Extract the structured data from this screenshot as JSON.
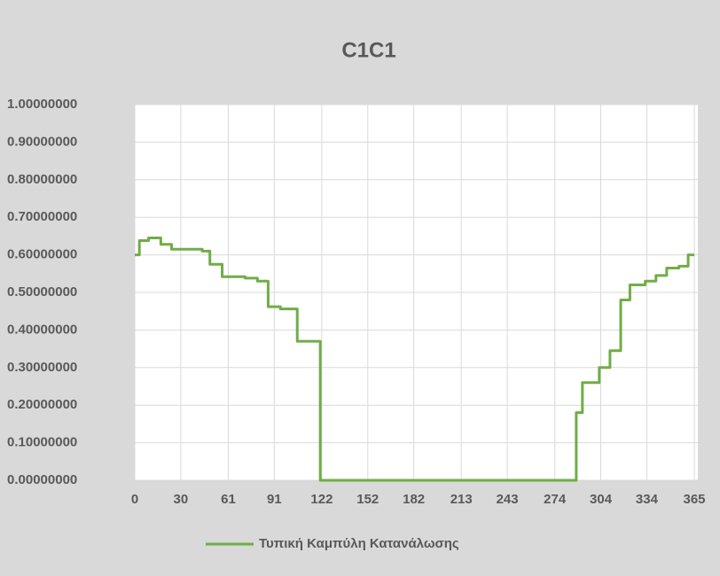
{
  "chart_data": {
    "type": "line",
    "title": "C1C1",
    "x": [
      0,
      3,
      3,
      9,
      9,
      17,
      17,
      24,
      24,
      44,
      44,
      49,
      49,
      57,
      57,
      72,
      72,
      80,
      80,
      87,
      87,
      95,
      95,
      106,
      106,
      121,
      121,
      288,
      288,
      292,
      292,
      303,
      303,
      310,
      310,
      317,
      317,
      323,
      323,
      333,
      333,
      340,
      340,
      347,
      347,
      355,
      355,
      361,
      361,
      365
    ],
    "series": [
      {
        "name": "Τυπική Καμπύλη Κατανάλωσης",
        "color": "#70ad47",
        "values": [
          0.6,
          0.6,
          0.638,
          0.638,
          0.645,
          0.645,
          0.628,
          0.628,
          0.615,
          0.615,
          0.61,
          0.61,
          0.575,
          0.575,
          0.542,
          0.542,
          0.538,
          0.538,
          0.53,
          0.53,
          0.462,
          0.462,
          0.456,
          0.456,
          0.37,
          0.37,
          0,
          0,
          0.18,
          0.18,
          0.26,
          0.26,
          0.3,
          0.3,
          0.345,
          0.345,
          0.48,
          0.48,
          0.52,
          0.52,
          0.53,
          0.53,
          0.545,
          0.545,
          0.565,
          0.565,
          0.57,
          0.57,
          0.6,
          0.6
        ]
      }
    ],
    "xlim": [
      0,
      365
    ],
    "xticks": [
      0,
      30,
      61,
      91,
      122,
      152,
      182,
      213,
      243,
      274,
      304,
      334,
      365
    ],
    "ylim": [
      0,
      1
    ],
    "yticks": [
      {
        "value": 0,
        "label": "0.00000000"
      },
      {
        "value": 0.1,
        "label": "0.10000000"
      },
      {
        "value": 0.2,
        "label": "0.20000000"
      },
      {
        "value": 0.3,
        "label": "0.30000000"
      },
      {
        "value": 0.4,
        "label": "0.40000000"
      },
      {
        "value": 0.5,
        "label": "0.50000000"
      },
      {
        "value": 0.6,
        "label": "0.60000000"
      },
      {
        "value": 0.7,
        "label": "0.70000000"
      },
      {
        "value": 0.8,
        "label": "0.80000000"
      },
      {
        "value": 0.9,
        "label": "0.90000000"
      },
      {
        "value": 1,
        "label": "1.00000000"
      }
    ],
    "grid": true,
    "legend": "bottom"
  }
}
